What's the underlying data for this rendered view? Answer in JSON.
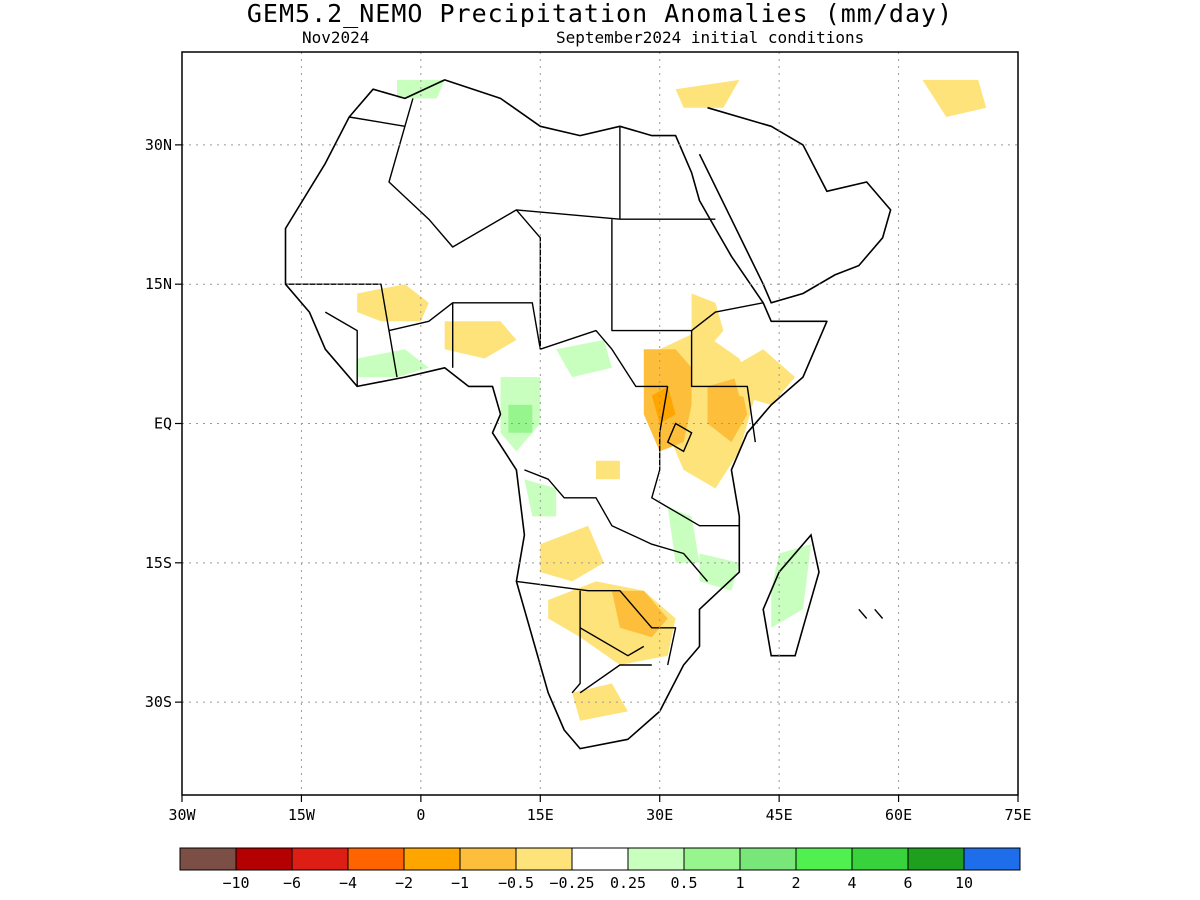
{
  "title": "GEM5.2_NEMO Precipitation Anomalies (mm/day)",
  "subtitle_left": "Nov2024",
  "subtitle_right": "September2024 initial conditions",
  "map": {
    "lon_range": [
      -30,
      75
    ],
    "lat_range": [
      -40,
      40
    ],
    "x_ticks": [
      {
        "value": -30,
        "label": "30W"
      },
      {
        "value": -15,
        "label": "15W"
      },
      {
        "value": 0,
        "label": "0"
      },
      {
        "value": 15,
        "label": "15E"
      },
      {
        "value": 30,
        "label": "30E"
      },
      {
        "value": 45,
        "label": "45E"
      },
      {
        "value": 60,
        "label": "60E"
      },
      {
        "value": 75,
        "label": "75E"
      }
    ],
    "y_ticks": [
      {
        "value": 30,
        "label": "30N"
      },
      {
        "value": 15,
        "label": "15N"
      },
      {
        "value": 0,
        "label": "EQ"
      },
      {
        "value": -15,
        "label": "15S"
      },
      {
        "value": -30,
        "label": "30S"
      }
    ],
    "grid": true,
    "grid_style": "dotted"
  },
  "colorbar": {
    "colors": [
      "#7b4f45",
      "#b40000",
      "#dc1e14",
      "#ff6400",
      "#ffa500",
      "#fdbf3b",
      "#fde37a",
      "#ffffff",
      "#c8ffbe",
      "#96f58c",
      "#78e678",
      "#50f050",
      "#37d23c",
      "#1ea01e",
      "#1e6eeb"
    ],
    "labels": [
      "−10",
      "−6",
      "−4",
      "−2",
      "−1",
      "−0.5",
      "−0.25",
      "0.25",
      "0.5",
      "1",
      "2",
      "4",
      "6",
      "10"
    ]
  },
  "anomalies": [
    {
      "category": "-0.5 to -0.25",
      "color": "#fde37a",
      "pts": [
        [
          30,
          8
        ],
        [
          35,
          10
        ],
        [
          40,
          7
        ],
        [
          42,
          3
        ],
        [
          40,
          -3
        ],
        [
          37,
          -7
        ],
        [
          33,
          -5
        ],
        [
          31,
          -1
        ],
        [
          29,
          3
        ],
        [
          28,
          6
        ]
      ]
    },
    {
      "category": "-1 to -0.5",
      "color": "#fdbf3b",
      "pts": [
        [
          28,
          8
        ],
        [
          32,
          8
        ],
        [
          34,
          6
        ],
        [
          34,
          2
        ],
        [
          33,
          -2
        ],
        [
          30,
          -3
        ],
        [
          28,
          1
        ]
      ]
    },
    {
      "category": "-1 to -0.5",
      "color": "#fdbf3b",
      "pts": [
        [
          36,
          4
        ],
        [
          40,
          5
        ],
        [
          41,
          1
        ],
        [
          39,
          -2
        ],
        [
          36,
          0
        ]
      ]
    },
    {
      "category": "-2 to -1",
      "color": "#ffa500",
      "pts": [
        [
          29,
          3
        ],
        [
          31,
          4
        ],
        [
          32,
          1
        ],
        [
          30,
          0
        ]
      ]
    },
    {
      "category": "-0.5 to -0.25",
      "color": "#fde37a",
      "pts": [
        [
          34,
          14
        ],
        [
          37,
          13
        ],
        [
          38,
          10
        ],
        [
          36,
          8
        ],
        [
          34,
          9
        ]
      ]
    },
    {
      "category": "-0.5 to -0.25",
      "color": "#fde37a",
      "pts": [
        [
          39,
          6
        ],
        [
          43,
          8
        ],
        [
          47,
          5
        ],
        [
          44,
          2
        ],
        [
          40,
          3
        ]
      ]
    },
    {
      "category": "-0.5 to -0.25",
      "color": "#fde37a",
      "pts": [
        [
          15,
          -13
        ],
        [
          21,
          -11
        ],
        [
          23,
          -15
        ],
        [
          19,
          -17
        ],
        [
          15,
          -16
        ]
      ]
    },
    {
      "category": "-0.5 to -0.25",
      "color": "#fde37a",
      "pts": [
        [
          16,
          -19
        ],
        [
          22,
          -17
        ],
        [
          28,
          -18
        ],
        [
          32,
          -21
        ],
        [
          31,
          -25
        ],
        [
          25,
          -26
        ],
        [
          20,
          -23
        ],
        [
          16,
          -21
        ]
      ]
    },
    {
      "category": "-1 to -0.5",
      "color": "#fdbf3b",
      "pts": [
        [
          24,
          -18
        ],
        [
          28,
          -18
        ],
        [
          31,
          -21
        ],
        [
          29,
          -23
        ],
        [
          25,
          -22
        ]
      ]
    },
    {
      "category": "-0.5 to -0.25",
      "color": "#fde37a",
      "pts": [
        [
          19,
          -29
        ],
        [
          24,
          -28
        ],
        [
          26,
          -31
        ],
        [
          20,
          -32
        ]
      ]
    },
    {
      "category": "-0.5 to -0.25",
      "color": "#fde37a",
      "pts": [
        [
          -8,
          14
        ],
        [
          -2,
          15
        ],
        [
          1,
          13
        ],
        [
          0,
          11
        ],
        [
          -5,
          11
        ],
        [
          -8,
          12
        ]
      ]
    },
    {
      "category": "-0.5 to -0.25",
      "color": "#fde37a",
      "pts": [
        [
          3,
          11
        ],
        [
          10,
          11
        ],
        [
          12,
          9
        ],
        [
          8,
          7
        ],
        [
          3,
          8
        ]
      ]
    },
    {
      "category": "-0.5 to -0.25",
      "color": "#fde37a",
      "pts": [
        [
          22,
          -4
        ],
        [
          25,
          -4
        ],
        [
          25,
          -6
        ],
        [
          22,
          -6
        ]
      ]
    },
    {
      "category": "-0.5 to -0.25",
      "color": "#fde37a",
      "pts": [
        [
          32,
          36
        ],
        [
          40,
          37
        ],
        [
          38,
          34
        ],
        [
          33,
          34
        ]
      ]
    },
    {
      "category": "-0.5 to -0.25",
      "color": "#fde37a",
      "pts": [
        [
          63,
          37
        ],
        [
          70,
          37
        ],
        [
          71,
          34
        ],
        [
          66,
          33
        ]
      ]
    },
    {
      "category": "0.25 to 0.5",
      "color": "#c8ffbe",
      "pts": [
        [
          10,
          5
        ],
        [
          15,
          5
        ],
        [
          15,
          0
        ],
        [
          12,
          -3
        ],
        [
          10,
          -1
        ]
      ]
    },
    {
      "category": "0.25 to 0.5",
      "color": "#c8ffbe",
      "pts": [
        [
          17,
          8
        ],
        [
          23,
          9
        ],
        [
          24,
          6
        ],
        [
          19,
          5
        ]
      ]
    },
    {
      "category": "0.25 to 0.5",
      "color": "#c8ffbe",
      "pts": [
        [
          -8,
          7
        ],
        [
          -2,
          8
        ],
        [
          1,
          6
        ],
        [
          -3,
          5
        ],
        [
          -8,
          5
        ]
      ]
    },
    {
      "category": "0.25 to 0.5",
      "color": "#c8ffbe",
      "pts": [
        [
          13,
          -6
        ],
        [
          17,
          -7
        ],
        [
          17,
          -10
        ],
        [
          14,
          -10
        ]
      ]
    },
    {
      "category": "0.25 to 0.5",
      "color": "#c8ffbe",
      "pts": [
        [
          31,
          -9
        ],
        [
          34,
          -10
        ],
        [
          35,
          -15
        ],
        [
          32,
          -15
        ]
      ]
    },
    {
      "category": "0.25 to 0.5",
      "color": "#c8ffbe",
      "pts": [
        [
          35,
          -14
        ],
        [
          40,
          -15
        ],
        [
          39,
          -18
        ],
        [
          35,
          -17
        ]
      ]
    },
    {
      "category": "0.25 to 0.5",
      "color": "#c8ffbe",
      "pts": [
        [
          45,
          -14
        ],
        [
          49,
          -13
        ],
        [
          48,
          -20
        ],
        [
          44,
          -22
        ],
        [
          44,
          -18
        ]
      ]
    },
    {
      "category": "0.25 to 0.5",
      "color": "#c8ffbe",
      "pts": [
        [
          -3,
          37
        ],
        [
          3,
          37
        ],
        [
          2,
          35
        ],
        [
          -3,
          35
        ]
      ]
    },
    {
      "category": "0.5 to 1",
      "color": "#96f58c",
      "pts": [
        [
          11,
          2
        ],
        [
          14,
          2
        ],
        [
          14,
          -1
        ],
        [
          11,
          -1
        ]
      ]
    }
  ],
  "coastline": [
    [
      [
        -6,
        36
      ],
      [
        -9,
        33
      ],
      [
        -12,
        28
      ],
      [
        -17,
        21
      ],
      [
        -17,
        15
      ],
      [
        -14,
        12
      ],
      [
        -12,
        8
      ],
      [
        -8,
        4
      ],
      [
        -2,
        5
      ],
      [
        3,
        6
      ],
      [
        6,
        4
      ],
      [
        9,
        4
      ],
      [
        10,
        1
      ],
      [
        9,
        -1
      ],
      [
        12,
        -5
      ],
      [
        13,
        -12
      ],
      [
        12,
        -17
      ],
      [
        14,
        -23
      ],
      [
        16,
        -29
      ],
      [
        18,
        -33
      ],
      [
        20,
        -35
      ],
      [
        26,
        -34
      ],
      [
        30,
        -31
      ],
      [
        33,
        -26
      ],
      [
        35,
        -24
      ],
      [
        35,
        -20
      ],
      [
        40,
        -16
      ],
      [
        40,
        -10
      ],
      [
        39,
        -5
      ],
      [
        41,
        -1
      ],
      [
        44,
        2
      ],
      [
        48,
        5
      ],
      [
        51,
        11
      ],
      [
        44,
        11
      ],
      [
        43,
        13
      ],
      [
        39,
        18
      ],
      [
        37,
        21
      ],
      [
        35,
        24
      ],
      [
        34,
        27
      ],
      [
        32,
        31
      ],
      [
        29,
        31
      ],
      [
        25,
        32
      ],
      [
        20,
        31
      ],
      [
        15,
        32
      ],
      [
        10,
        35
      ],
      [
        3,
        37
      ],
      [
        -2,
        35
      ],
      [
        -6,
        36
      ]
    ]
  ],
  "madagascar": [
    [
      49,
      -12
    ],
    [
      50,
      -16
    ],
    [
      48,
      -22
    ],
    [
      47,
      -25
    ],
    [
      44,
      -25
    ],
    [
      43,
      -20
    ],
    [
      45,
      -16
    ]
  ],
  "arabia": [
    [
      35,
      29
    ],
    [
      39,
      22
    ],
    [
      43,
      15
    ],
    [
      44,
      13
    ],
    [
      48,
      14
    ],
    [
      52,
      16
    ],
    [
      55,
      17
    ],
    [
      58,
      20
    ],
    [
      59,
      23
    ],
    [
      56,
      26
    ],
    [
      51,
      25
    ],
    [
      48,
      30
    ],
    [
      44,
      32
    ],
    [
      36,
      34
    ]
  ],
  "borders": [
    [
      [
        -9,
        33
      ],
      [
        -2,
        32
      ],
      [
        -1,
        35
      ]
    ],
    [
      [
        -2,
        32
      ],
      [
        -4,
        26
      ],
      [
        1,
        22
      ],
      [
        4,
        19
      ],
      [
        12,
        23
      ],
      [
        25,
        22
      ]
    ],
    [
      [
        25,
        22
      ],
      [
        25,
        32
      ]
    ],
    [
      [
        25,
        22
      ],
      [
        37,
        22
      ]
    ],
    [
      [
        12,
        23
      ],
      [
        15,
        20
      ],
      [
        15,
        8
      ]
    ],
    [
      [
        -17,
        15
      ],
      [
        -5,
        15
      ],
      [
        -4,
        10
      ],
      [
        1,
        11
      ],
      [
        4,
        13
      ],
      [
        14,
        13
      ],
      [
        15,
        8
      ]
    ],
    [
      [
        4,
        13
      ],
      [
        4,
        6
      ]
    ],
    [
      [
        -4,
        10
      ],
      [
        -3,
        5
      ]
    ],
    [
      [
        -8,
        4
      ],
      [
        -8,
        10
      ],
      [
        -12,
        12
      ]
    ],
    [
      [
        15,
        8
      ],
      [
        22,
        10
      ],
      [
        24,
        8
      ],
      [
        27,
        4
      ],
      [
        31,
        4
      ]
    ],
    [
      [
        24,
        22
      ],
      [
        24,
        10
      ],
      [
        34,
        10
      ],
      [
        37,
        12
      ],
      [
        43,
        13
      ]
    ],
    [
      [
        34,
        10
      ],
      [
        34,
        4
      ],
      [
        41,
        4
      ],
      [
        42,
        -2
      ]
    ],
    [
      [
        31,
        4
      ],
      [
        30,
        -1
      ],
      [
        30,
        -5
      ],
      [
        29,
        -8
      ],
      [
        31,
        -9
      ],
      [
        35,
        -11
      ],
      [
        40,
        -11
      ]
    ],
    [
      [
        13,
        -5
      ],
      [
        16,
        -6
      ],
      [
        18,
        -8
      ],
      [
        22,
        -8
      ],
      [
        24,
        -11
      ],
      [
        29,
        -13
      ],
      [
        33,
        -14
      ],
      [
        36,
        -17
      ]
    ],
    [
      [
        12,
        -17
      ],
      [
        21,
        -18
      ],
      [
        25,
        -18
      ],
      [
        29,
        -22
      ],
      [
        32,
        -22
      ],
      [
        31,
        -26
      ]
    ],
    [
      [
        20,
        -18
      ],
      [
        20,
        -28
      ],
      [
        19,
        -29
      ]
    ],
    [
      [
        20,
        -22
      ],
      [
        26,
        -25
      ],
      [
        28,
        -24
      ]
    ],
    [
      [
        20,
        -29
      ],
      [
        25,
        -26
      ],
      [
        29,
        -26
      ]
    ]
  ],
  "lakes": [
    [
      [
        32,
        0
      ],
      [
        34,
        -1
      ],
      [
        33,
        -3
      ],
      [
        31,
        -2
      ]
    ]
  ],
  "islands": [
    [
      [
        55,
        -20
      ],
      [
        56,
        -21
      ]
    ],
    [
      [
        57,
        -20
      ],
      [
        58,
        -21
      ]
    ]
  ]
}
